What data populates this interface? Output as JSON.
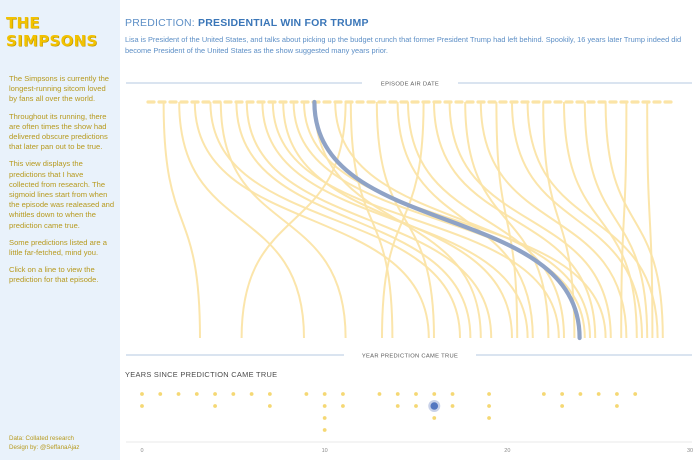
{
  "sidebar": {
    "logo": "THE SIMPSONS",
    "paragraphs": [
      "The Simpsons is currently the longest-running  sitcom loved by fans all over the world.",
      "Throughout its running, there are often times the show had delivered obscure predictions that later pan out to be true.",
      "This view displays the predictions that I have collected from research. The sigmoid lines start from when the episode was realeased and whittles down to when the prediction came true.",
      "Some predictions listed are a little far-fetched, mind you.",
      "Click on a line to view the prediction for that episode."
    ],
    "credit_data": "Data: Collated research",
    "credit_design": "Design by: @SeffanaAjaz"
  },
  "header": {
    "title_prefix": "PREDICTION: ",
    "title_value": "PRESIDENTIAL WIN FOR TRUMP",
    "description": "Lisa is President of the United States, and talks about picking up the budget crunch that former President Trump had left behind. Spookily, 16 years later Trump indeed did become President of the United States as the show suggested many years prior."
  },
  "colors": {
    "accent": "#f4c400",
    "curve": "#fbe4a6",
    "highlight": "#8fa3c6",
    "axis_line": "#9cb8d8"
  },
  "chart_data": [
    {
      "type": "line",
      "title": "",
      "top_axis_label": "EPISODE AIR DATE",
      "bottom_axis_label": "YEAR PREDICTION CAME TRUE",
      "highlight": "Presidential win for Trump",
      "note": "",
      "series": [
        {
          "start": 0.03,
          "end": 0.1
        },
        {
          "start": 0.06,
          "end": 0.3
        },
        {
          "start": 0.09,
          "end": 0.54
        },
        {
          "start": 0.12,
          "end": 0.6
        },
        {
          "start": 0.14,
          "end": 0.38
        },
        {
          "start": 0.17,
          "end": 0.62
        },
        {
          "start": 0.19,
          "end": 0.66
        },
        {
          "start": 0.22,
          "end": 0.73
        },
        {
          "start": 0.24,
          "end": 0.79
        },
        {
          "start": 0.26,
          "end": 0.7
        },
        {
          "start": 0.28,
          "end": 0.84
        },
        {
          "start": 0.3,
          "end": 0.88
        },
        {
          "start": 0.32,
          "end": 0.64
        },
        {
          "start": 0.36,
          "end": 0.85
        },
        {
          "start": 0.38,
          "end": 0.18
        },
        {
          "start": 0.39,
          "end": 0.47
        },
        {
          "start": 0.44,
          "end": 0.55
        },
        {
          "start": 0.48,
          "end": 0.74
        },
        {
          "start": 0.5,
          "end": 0.8
        },
        {
          "start": 0.53,
          "end": 0.45
        },
        {
          "start": 0.55,
          "end": 0.86
        },
        {
          "start": 0.58,
          "end": 0.89
        },
        {
          "start": 0.61,
          "end": 0.77
        },
        {
          "start": 0.64,
          "end": 0.92
        },
        {
          "start": 0.67,
          "end": 0.71
        },
        {
          "start": 0.7,
          "end": 0.95
        },
        {
          "start": 0.73,
          "end": 0.98
        },
        {
          "start": 0.76,
          "end": 0.82
        },
        {
          "start": 0.8,
          "end": 0.94
        },
        {
          "start": 0.84,
          "end": 0.96
        },
        {
          "start": 0.88,
          "end": 0.99
        },
        {
          "start": 0.92,
          "end": 0.91
        },
        {
          "start": 0.96,
          "end": 0.97
        }
      ],
      "highlight_series": {
        "start": 0.32,
        "end": 0.83
      }
    },
    {
      "type": "scatter",
      "title": "YEARS SINCE PREDICTION CAME TRUE",
      "xlim": [
        -1,
        30
      ],
      "xticks": [
        0,
        10,
        20,
        30
      ],
      "ylim": [
        0,
        4
      ],
      "points": [
        {
          "x": 0,
          "y": 1
        },
        {
          "x": 0,
          "y": 2
        },
        {
          "x": 1,
          "y": 1
        },
        {
          "x": 2,
          "y": 1
        },
        {
          "x": 3,
          "y": 1
        },
        {
          "x": 4,
          "y": 1
        },
        {
          "x": 4,
          "y": 2
        },
        {
          "x": 5,
          "y": 1
        },
        {
          "x": 6,
          "y": 1
        },
        {
          "x": 7,
          "y": 1
        },
        {
          "x": 7,
          "y": 2
        },
        {
          "x": 9,
          "y": 1
        },
        {
          "x": 10,
          "y": 1
        },
        {
          "x": 10,
          "y": 2
        },
        {
          "x": 10,
          "y": 3
        },
        {
          "x": 10,
          "y": 4
        },
        {
          "x": 11,
          "y": 1
        },
        {
          "x": 11,
          "y": 2
        },
        {
          "x": 13,
          "y": 1
        },
        {
          "x": 14,
          "y": 1
        },
        {
          "x": 14,
          "y": 2
        },
        {
          "x": 15,
          "y": 1
        },
        {
          "x": 15,
          "y": 2
        },
        {
          "x": 16,
          "y": 1
        },
        {
          "x": 16,
          "y": 2
        },
        {
          "x": 16,
          "y": 3
        },
        {
          "x": 17,
          "y": 1
        },
        {
          "x": 17,
          "y": 2
        },
        {
          "x": 19,
          "y": 1
        },
        {
          "x": 19,
          "y": 2
        },
        {
          "x": 19,
          "y": 3
        },
        {
          "x": 22,
          "y": 1
        },
        {
          "x": 23,
          "y": 1
        },
        {
          "x": 23,
          "y": 2
        },
        {
          "x": 24,
          "y": 1
        },
        {
          "x": 25,
          "y": 1
        },
        {
          "x": 26,
          "y": 1
        },
        {
          "x": 26,
          "y": 2
        },
        {
          "x": 27,
          "y": 1
        }
      ],
      "highlight_point": {
        "x": 16,
        "y": 2
      }
    }
  ]
}
